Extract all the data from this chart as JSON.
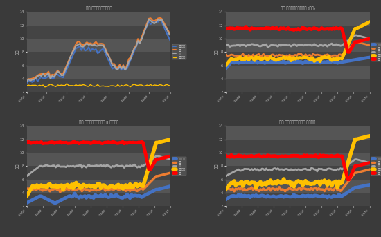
{
  "bg_color": "#3a3a3a",
  "plot_bg": "#3a3a3a",
  "band_colors": [
    "#4a4a4a",
    "#555555"
  ],
  "text_color": "#cccccc",
  "grid_line_color": "#666666",
  "panel1": {
    "title": "枣价 红枣批发价格周走势",
    "ylabel": "元/斤",
    "ylim": [
      2,
      14
    ],
    "yticks": [
      2,
      4,
      6,
      8,
      10,
      12,
      14
    ],
    "n_points": 80,
    "series": [
      {
        "label": "若羌红枣",
        "color": "#4472C4",
        "lw": 1.5
      },
      {
        "label": "骏枣",
        "color": "#ED7D31",
        "lw": 1.5
      },
      {
        "label": "灰枣",
        "color": "#A5A5A5",
        "lw": 1.5
      },
      {
        "label": "金丝小枣",
        "color": "#FFC000",
        "lw": 1.0
      }
    ]
  },
  "panel2": {
    "title": "枣价 郑枣批发价格周走势 (近年)",
    "ylabel": "元/斤",
    "ylim": [
      2,
      14
    ],
    "yticks": [
      2,
      4,
      6,
      8,
      10,
      12,
      14
    ],
    "n_points": 100,
    "series": [
      {
        "label": "若羌红枣",
        "color": "#4472C4",
        "lw": 3.5
      },
      {
        "label": "骏枣",
        "color": "#ED7D31",
        "lw": 2.0
      },
      {
        "label": "灰枣",
        "color": "#A5A5A5",
        "lw": 2.0
      },
      {
        "label": "金丝小枣",
        "color": "#FFC000",
        "lw": 3.5
      },
      {
        "label": "冬枣",
        "color": "#FF0000",
        "lw": 3.5
      }
    ]
  },
  "panel3": {
    "title": "枣价 郑枣批发价格周走势 II 历史数据",
    "ylabel": "元/斤",
    "ylim": [
      2,
      14
    ],
    "yticks": [
      2,
      4,
      6,
      8,
      10,
      12,
      14
    ],
    "n_points": 100,
    "series": [
      {
        "label": "若羌红枣",
        "color": "#4472C4",
        "lw": 3.5
      },
      {
        "label": "骏枣",
        "color": "#ED7D31",
        "lw": 2.5
      },
      {
        "label": "灰枣",
        "color": "#A5A5A5",
        "lw": 2.0
      },
      {
        "label": "金丝小枣",
        "color": "#FFC000",
        "lw": 4.0
      },
      {
        "label": "冬枣",
        "color": "#FF0000",
        "lw": 3.5
      }
    ]
  },
  "panel4": {
    "title": "枣价 郑枣批发价格周走势 历史对比",
    "ylabel": "元/斤",
    "ylim": [
      2,
      14
    ],
    "yticks": [
      2,
      4,
      6,
      8,
      10,
      12,
      14
    ],
    "n_points": 100,
    "series": [
      {
        "label": "若羌红枣",
        "color": "#4472C4",
        "lw": 3.5
      },
      {
        "label": "骏枣",
        "color": "#ED7D31",
        "lw": 2.5
      },
      {
        "label": "灰枣",
        "color": "#A5A5A5",
        "lw": 2.0
      },
      {
        "label": "金丝小枣",
        "color": "#FFC000",
        "lw": 4.0
      },
      {
        "label": "冬枣",
        "color": "#FF0000",
        "lw": 3.5
      }
    ]
  }
}
